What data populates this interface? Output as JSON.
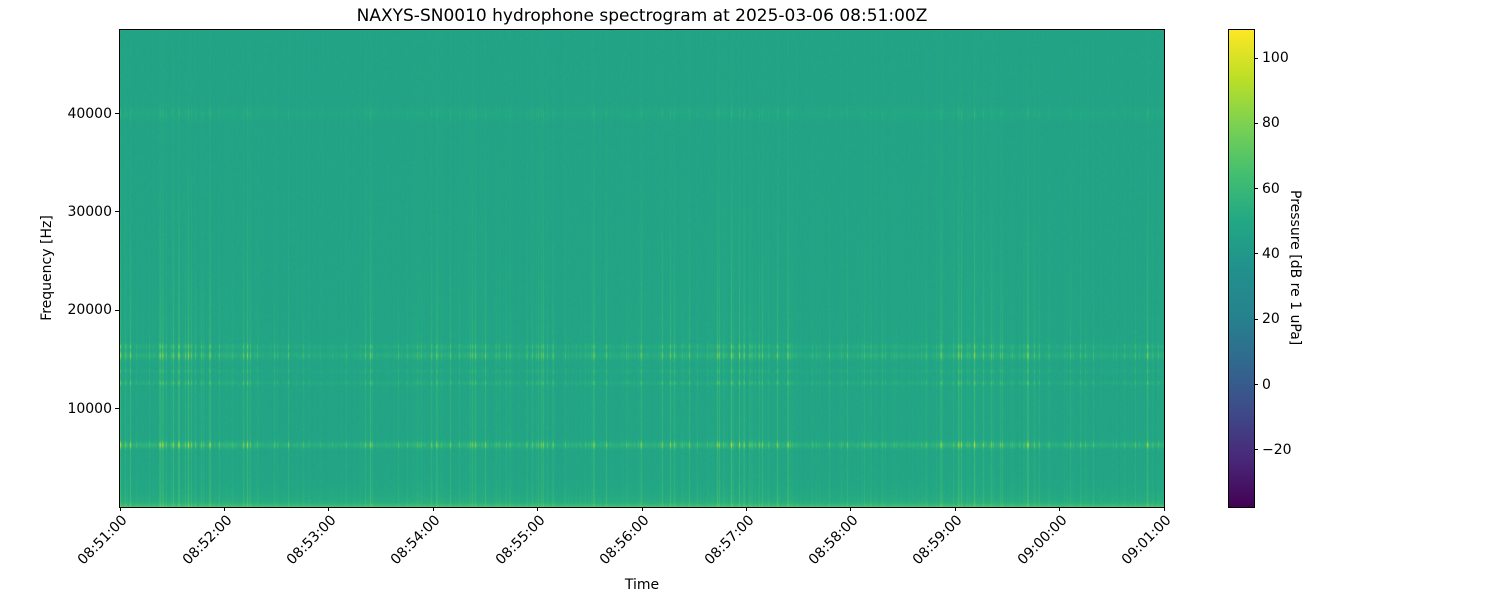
{
  "figure": {
    "background": "#ffffff"
  },
  "chart_data": {
    "type": "heatmap",
    "subtype": "spectrogram",
    "title": "NAXYS-SN0010 hydrophone spectrogram at 2025-03-06 08:51:00Z",
    "xlabel": "Time",
    "ylabel": "Frequency [Hz]",
    "grid": false,
    "x_ticks": [
      "08:51:00",
      "08:52:00",
      "08:53:00",
      "08:54:00",
      "08:55:00",
      "08:56:00",
      "08:57:00",
      "08:58:00",
      "08:59:00",
      "09:00:00",
      "09:01:00"
    ],
    "x_range": [
      "08:51:00",
      "09:01:00"
    ],
    "x_tick_rotation_deg": 45,
    "y_ticks": [
      {
        "value": 10000,
        "label": "10000"
      },
      {
        "value": 20000,
        "label": "20000"
      },
      {
        "value": 30000,
        "label": "30000"
      },
      {
        "value": 40000,
        "label": "40000"
      }
    ],
    "y_range_hz": [
      0,
      48500
    ],
    "colorbar": {
      "label": "Pressure [dB re 1 uPa]",
      "ticks": [
        {
          "value": 100,
          "label": "100"
        },
        {
          "value": 80,
          "label": "80"
        },
        {
          "value": 60,
          "label": "60"
        },
        {
          "value": 40,
          "label": "40"
        },
        {
          "value": 20,
          "label": "20"
        },
        {
          "value": 0,
          "label": "0"
        },
        {
          "value": -20,
          "label": "−20"
        }
      ],
      "range_db": [
        -37.5,
        108.6
      ],
      "colormap": "viridis",
      "stops": [
        "#440154",
        "#482878",
        "#3e4a89",
        "#31688e",
        "#26828e",
        "#21918c",
        "#22a884",
        "#44bf70",
        "#7ad151",
        "#bddf26",
        "#fde725"
      ]
    },
    "spectrogram_model": {
      "description": "teal broadband noise floor with dense broadband vertical click striations and persistent tonal bands; brightest blobs ~90-100 dB where clicks cross the 6.3 kHz band; low-frequency energy ramp at the very bottom edge",
      "noise_floor_db": 47,
      "low_freq_ramp_db": 8,
      "bottom_edge_boost_db": 9,
      "bands": [
        {
          "freq_hz": 6300,
          "sigma_hz": 220,
          "base_db": 5.0,
          "click_gain_db": 30
        },
        {
          "freq_hz": 12600,
          "sigma_hz": 150,
          "base_db": 2.5,
          "click_gain_db": 14
        },
        {
          "freq_hz": 13800,
          "sigma_hz": 130,
          "base_db": 1.5,
          "click_gain_db": 8
        },
        {
          "freq_hz": 15400,
          "sigma_hz": 260,
          "base_db": 3.5,
          "click_gain_db": 22
        },
        {
          "freq_hz": 16300,
          "sigma_hz": 180,
          "base_db": 2.5,
          "click_gain_db": 16
        },
        {
          "freq_hz": 40000,
          "sigma_hz": 400,
          "base_db": 2.0,
          "click_gain_db": 5
        }
      ],
      "click_broadband_gain_db": 12,
      "click_rolloff_start_hz": 17000,
      "click_rolloff_scale_hz": 16000
    }
  }
}
